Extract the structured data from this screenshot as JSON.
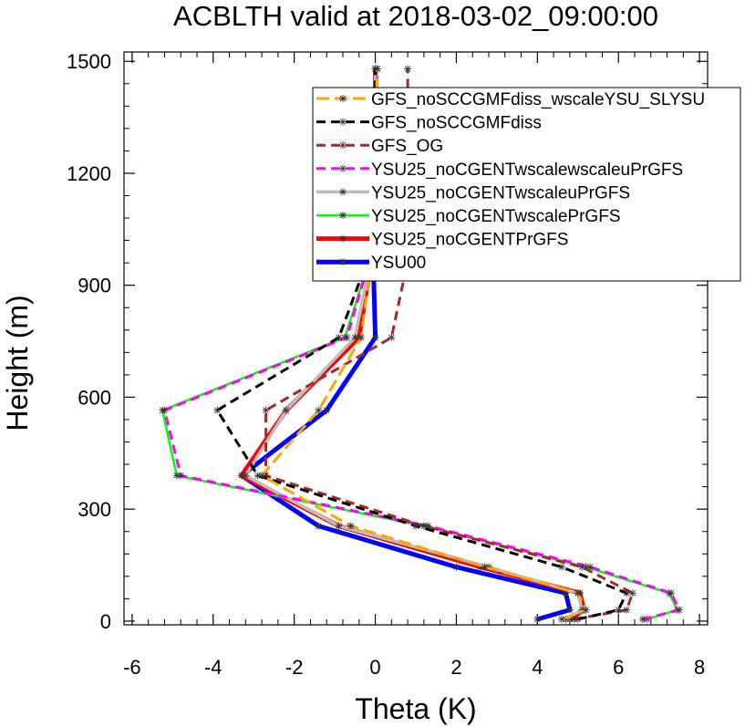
{
  "chart_data": {
    "type": "line",
    "title": "ACBLTH valid at 2018-03-02_09:00:00",
    "xlabel": "Theta (K)",
    "ylabel": "Height (m)",
    "xlim": [
      -6.2,
      8.2
    ],
    "ylim": [
      -10,
      1525
    ],
    "xticks": [
      -6,
      -4,
      -2,
      0,
      2,
      4,
      6,
      8
    ],
    "yticks": [
      0,
      300,
      600,
      900,
      1200,
      1500
    ],
    "xtick_labels": [
      "-6",
      "-4",
      "-2",
      "0",
      "2",
      "4",
      "6",
      "8"
    ],
    "ytick_labels": [
      "0",
      "300",
      "600",
      "900",
      "1200",
      "1500"
    ],
    "legend_position": "top-right",
    "series": [
      {
        "name": "GFS_noSCCGMFdiss_wscaleYSU_SLYSU",
        "color": "#FFA500",
        "dash": "long-dash",
        "x": [
          4.6,
          5.2,
          5.0,
          2.7,
          -0.6,
          -2.8,
          -1.4,
          -0.35,
          -0.1,
          -0.05,
          0.0,
          0.05
        ],
        "y": [
          5,
          30,
          75,
          145,
          255,
          390,
          565,
          760,
          965,
          1210,
          1330,
          1480
        ]
      },
      {
        "name": "GFS_noSCCGMFdiss",
        "color": "#000000",
        "dash": "dash",
        "x": [
          5.0,
          6.0,
          6.2,
          4.6,
          1.0,
          -2.9,
          -3.9,
          -0.9,
          -0.2,
          -0.1,
          0.0,
          0.0
        ],
        "y": [
          5,
          30,
          75,
          145,
          255,
          390,
          565,
          760,
          965,
          1210,
          1330,
          1480
        ]
      },
      {
        "name": "GFS_OG",
        "color": "#A52A2A",
        "dash": "dash",
        "x": [
          4.9,
          6.2,
          6.35,
          5.1,
          1.2,
          -2.7,
          -2.7,
          0.4,
          0.8,
          0.8,
          0.8,
          0.8
        ],
        "y": [
          5,
          30,
          75,
          145,
          255,
          390,
          565,
          760,
          965,
          1210,
          1330,
          1480
        ]
      },
      {
        "name": "YSU25_noCGENTwscalewscaleuPrGFS",
        "color": "#FF00FF",
        "dash": "dash",
        "x": [
          6.6,
          7.5,
          7.3,
          5.3,
          1.3,
          -4.8,
          -5.2,
          -0.7,
          -0.15,
          -0.05,
          0.0,
          0.05
        ],
        "y": [
          5,
          30,
          75,
          145,
          255,
          390,
          565,
          760,
          965,
          1210,
          1330,
          1480
        ]
      },
      {
        "name": "YSU25_noCGENTwscaleuPrGFS",
        "color": "#BEBEBE",
        "dash": "solid",
        "x": [
          4.7,
          5.1,
          5.0,
          2.8,
          -0.9,
          -3.2,
          -2.2,
          -0.5,
          -0.12,
          -0.05,
          0.0,
          0.0
        ],
        "y": [
          5,
          30,
          75,
          145,
          255,
          390,
          565,
          760,
          965,
          1210,
          1330,
          1480
        ]
      },
      {
        "name": "YSU25_noCGENTwscalePrGFS",
        "color": "#00FF00",
        "dash": "solid",
        "x": [
          6.7,
          7.45,
          7.25,
          5.2,
          1.2,
          -4.9,
          -5.25,
          -0.75,
          -0.15,
          -0.05,
          0.0,
          0.0
        ],
        "y": [
          5,
          30,
          75,
          145,
          255,
          390,
          565,
          760,
          965,
          1210,
          1330,
          1480
        ]
      },
      {
        "name": "YSU25_noCGENTPrGFS",
        "color": "#FF0000",
        "dash": "solid",
        "x": [
          4.8,
          5.15,
          5.05,
          2.6,
          -0.9,
          -3.3,
          -2.2,
          -0.4,
          -0.1,
          -0.05,
          0.0,
          0.0
        ],
        "y": [
          5,
          30,
          75,
          145,
          255,
          390,
          565,
          760,
          965,
          1210,
          1330,
          1480
        ]
      },
      {
        "name": "YSU00",
        "color": "#0000FF",
        "dash": "solid",
        "x": [
          4.0,
          4.8,
          4.7,
          2.0,
          -1.4,
          -3.3,
          -1.2,
          0.0,
          -0.05,
          0.0,
          0.0,
          0.0
        ],
        "y": [
          5,
          30,
          75,
          145,
          255,
          390,
          565,
          760,
          965,
          1210,
          1330,
          1480
        ]
      }
    ]
  }
}
